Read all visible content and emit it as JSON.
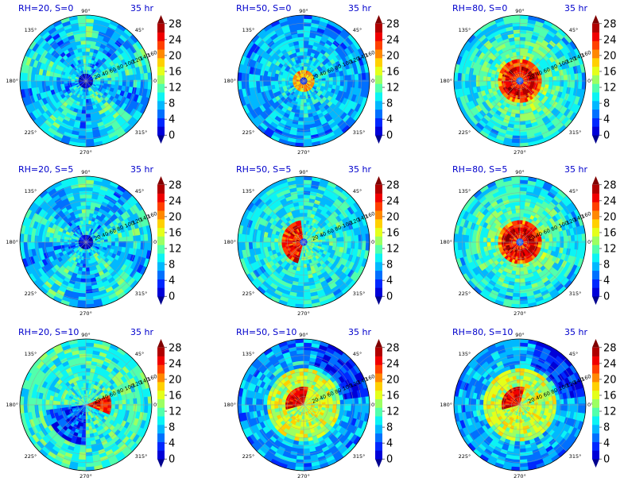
{
  "chart_data": [
    {
      "type": "heatmap",
      "projection": "polar",
      "title": "RH=20, S=0",
      "time_label": "35 hr",
      "rh": 20,
      "s": 0,
      "core": "weak-center"
    },
    {
      "type": "heatmap",
      "projection": "polar",
      "title": "RH=50, S=0",
      "time_label": "35 hr",
      "rh": 50,
      "s": 0,
      "core": "small-ring"
    },
    {
      "type": "heatmap",
      "projection": "polar",
      "title": "RH=80, S=0",
      "time_label": "35 hr",
      "rh": 80,
      "s": 0,
      "core": "strong-ring"
    },
    {
      "type": "heatmap",
      "projection": "polar",
      "title": "RH=20, S=5",
      "time_label": "35 hr",
      "rh": 20,
      "s": 5,
      "core": "weak-center"
    },
    {
      "type": "heatmap",
      "projection": "polar",
      "title": "RH=50, S=5",
      "time_label": "35 hr",
      "rh": 50,
      "s": 5,
      "core": "left-ring"
    },
    {
      "type": "heatmap",
      "projection": "polar",
      "title": "RH=80, S=5",
      "time_label": "35 hr",
      "rh": 80,
      "s": 5,
      "core": "strong-ring"
    },
    {
      "type": "heatmap",
      "projection": "polar",
      "title": "RH=20, S=10",
      "time_label": "35 hr",
      "rh": 20,
      "s": 10,
      "core": "right-band"
    },
    {
      "type": "heatmap",
      "projection": "polar",
      "title": "RH=50, S=10",
      "time_label": "35 hr",
      "rh": 50,
      "s": 10,
      "core": "upper-left"
    },
    {
      "type": "heatmap",
      "projection": "polar",
      "title": "RH=80, S=10",
      "time_label": "35 hr",
      "rh": 80,
      "s": 10,
      "core": "upper-left"
    }
  ],
  "angle_labels": {
    "deg90": "90°",
    "deg45": "45°",
    "deg135": "135°",
    "deg180": "180°",
    "deg0": "0°",
    "deg225": "225°",
    "deg315": "315°",
    "deg270": "270°"
  },
  "radial_ticks": [
    "20",
    "40",
    "60",
    "80",
    "100",
    "120",
    "140",
    "160"
  ],
  "colorbar": {
    "levels": [
      0,
      2,
      4,
      6,
      8,
      10,
      12,
      14,
      16,
      18,
      20,
      22,
      24,
      26,
      28
    ],
    "tick_labels": [
      "0",
      "4",
      "8",
      "12",
      "16",
      "20",
      "24",
      "28"
    ],
    "colors": [
      "#00008f",
      "#0000d8",
      "#0028ff",
      "#0070ff",
      "#00b8ff",
      "#0cf4f4",
      "#52ffac",
      "#9cff62",
      "#e4ff1a",
      "#ffd000",
      "#ff8800",
      "#ff4000",
      "#f00000",
      "#b00000",
      "#800000"
    ]
  }
}
